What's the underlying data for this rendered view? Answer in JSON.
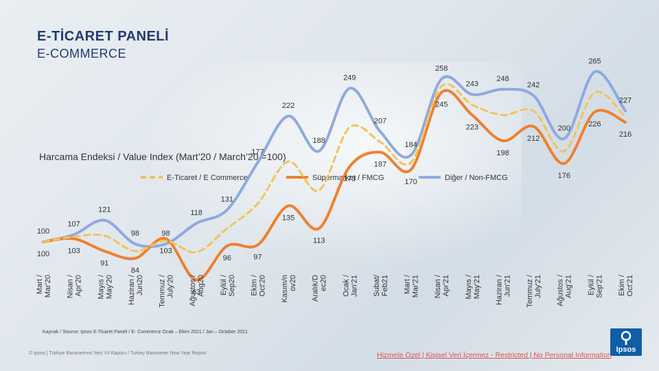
{
  "header": {
    "title": "E-TİCARET PANELİ",
    "subtitle": "E-COMMERCE"
  },
  "source_note": "Kaynak / Source: Ipsos E-Ticaret Paneli / E- Commerce Ocak – Ekim 2021 / Jan – October 2021",
  "footer": {
    "left": "© Ipsos | Türkiye Barometresi Yeni Yıl Raporu / Turkey Barometer New Year Report",
    "right": "Hizmete Özel | Kişisel Veri İçermez - Restricted | No Personal Information"
  },
  "logo": {
    "text": "Ipsos",
    "color": "#0f5fa6"
  },
  "chart_data": {
    "type": "line",
    "title": "Harcama Endeksi / Value Index (Mart’20 / March’20 =100)",
    "legend_position": "top",
    "grid": false,
    "categories": [
      "Mart / Mar'20",
      "Nisan / Apr'20",
      "Mayıs / May'20",
      "Haziran / Jun20",
      "Temmuz / July'20",
      "Ağustos / Aug20",
      "Eylül / Sep20",
      "Ekim / Oct'20",
      "Kasım/n ov20",
      "Aralık/D ec20",
      "Ocak / Jan'21",
      "Subat/ Feb21",
      "Mart / Mar'21",
      "Nisan / Apr'21",
      "Mayıs / May'21",
      "Haziran / Jun'21",
      "Temmuz / July'21",
      "Ağustos / Aug'21",
      "Eylül / Sep'21",
      "Ekim / Oct'21"
    ],
    "series": [
      {
        "name": "E-Ticaret / E Commerce",
        "color": "#f2c45a",
        "dashed": true,
        "values": [
          100,
          105,
          106,
          91,
          101,
          90,
          113,
          137,
          178,
          150,
          211,
          197,
          177,
          251,
          233,
          223,
          227,
          188,
          245,
          221
        ]
      },
      {
        "name": "Süpermarket / FMCG",
        "color": "#f07f2f",
        "dashed": false,
        "values": [
          100,
          103,
          91,
          84,
          103,
          63,
          96,
          97,
          135,
          113,
          173,
          187,
          170,
          245,
          223,
          198,
          212,
          176,
          226,
          216
        ]
      },
      {
        "name": "Diğer / Non-FMCG",
        "color": "#8fa9e0",
        "dashed": false,
        "values": [
          100,
          107,
          121,
          98,
          98,
          118,
          131,
          177,
          222,
          188,
          249,
          207,
          184,
          258,
          243,
          248,
          242,
          200,
          265,
          227
        ]
      }
    ]
  }
}
